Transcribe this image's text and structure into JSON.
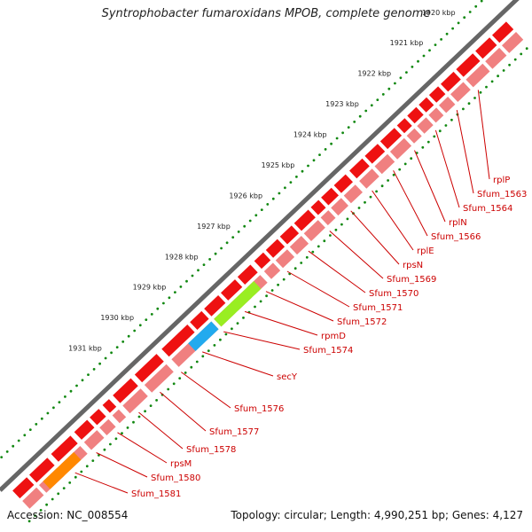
{
  "title": "Syntrophobacter fumaroxidans MPOB, complete genome",
  "footer": {
    "accession": "Accession: NC_008554",
    "summary": "Topology: circular; Length: 4,990,251 bp; Genes: 4,127"
  },
  "colors": {
    "backbone": "#666666",
    "gene_strand": "#ee1111",
    "cds_track": "#f08080",
    "highlight_green": "#99ee22",
    "highlight_blue": "#22aaee",
    "highlight_orange": "#ff8800",
    "tick_dots": "#118811",
    "label_text": "#cc0000",
    "kbp_text": "#222222"
  },
  "kbp_labels": [
    "1920 kbp",
    "1921 kbp",
    "1922 kbp",
    "1923 kbp",
    "1924 kbp",
    "1925 kbp",
    "1926 kbp",
    "1927 kbp",
    "1928 kbp",
    "1929 kbp",
    "1930 kbp",
    "1931 kbp"
  ],
  "gene_labels": [
    "rplP",
    "Sfum_1563",
    "Sfum_1564",
    "rplN",
    "Sfum_1566",
    "rplE",
    "rpsN",
    "Sfum_1569",
    "Sfum_1570",
    "Sfum_1571",
    "Sfum_1572",
    "rpmD",
    "Sfum_1574",
    "secY",
    "Sfum_1576",
    "Sfum_1577",
    "Sfum_1578",
    "rpsM",
    "Sfum_1580",
    "Sfum_1581"
  ]
}
